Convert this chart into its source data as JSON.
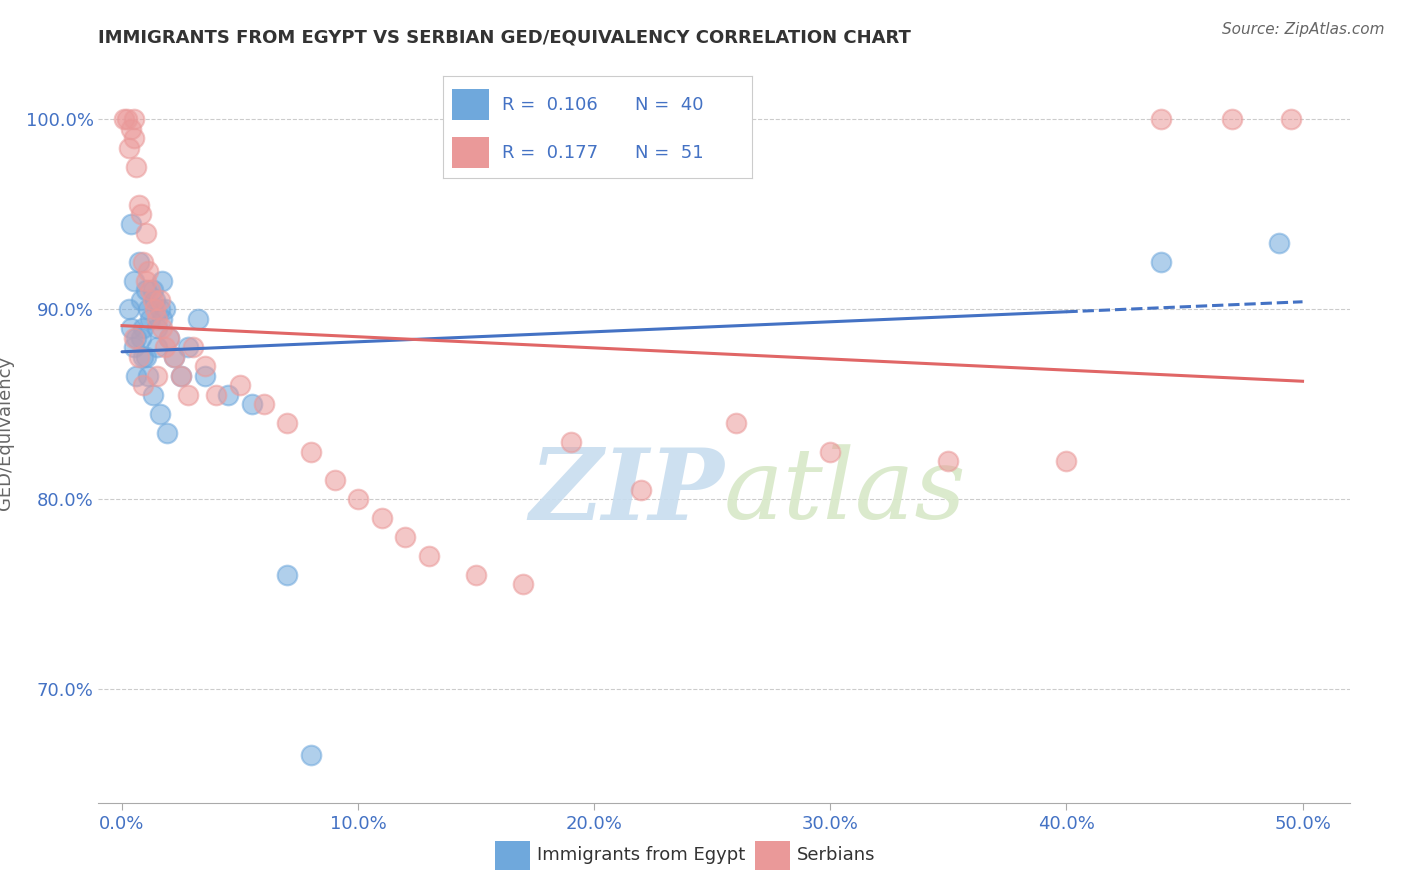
{
  "title": "IMMIGRANTS FROM EGYPT VS SERBIAN GED/EQUIVALENCY CORRELATION CHART",
  "source": "Source: ZipAtlas.com",
  "xlabel_label": "Immigrants from Egypt",
  "xlabel_label2": "Serbians",
  "ylabel": "GED/Equivalency",
  "xlim": [
    0.0,
    50.0
  ],
  "ylim": [
    64.0,
    103.0
  ],
  "xticks": [
    0.0,
    10.0,
    20.0,
    30.0,
    40.0,
    50.0
  ],
  "yticks": [
    70.0,
    80.0,
    90.0,
    100.0
  ],
  "ytick_labels": [
    "70.0%",
    "80.0%",
    "90.0%",
    "100.0%"
  ],
  "xtick_labels": [
    "0.0%",
    "10.0%",
    "20.0%",
    "30.0%",
    "40.0%",
    "50.0%"
  ],
  "legend_R1": "0.106",
  "legend_N1": "40",
  "legend_R2": "0.177",
  "legend_N2": "51",
  "blue_color": "#6FA8DC",
  "pink_color": "#EA9999",
  "blue_line_color": "#4472C4",
  "pink_line_color": "#E06666",
  "watermark_zip": "ZIP",
  "watermark_atlas": "atlas",
  "blue_x": [
    0.3,
    0.4,
    0.5,
    0.5,
    0.6,
    0.7,
    0.8,
    0.8,
    0.9,
    1.0,
    1.0,
    1.1,
    1.2,
    1.3,
    1.4,
    1.5,
    1.5,
    1.6,
    1.7,
    1.7,
    1.8,
    2.0,
    2.2,
    2.5,
    2.8,
    3.2,
    3.5,
    4.5,
    5.5,
    7.0,
    8.0,
    0.4,
    0.6,
    0.9,
    1.1,
    1.3,
    1.6,
    1.9,
    44.0,
    49.0
  ],
  "blue_y": [
    90.0,
    94.5,
    91.5,
    88.0,
    86.5,
    92.5,
    90.5,
    88.5,
    89.0,
    91.0,
    87.5,
    90.0,
    89.5,
    91.0,
    90.5,
    89.0,
    88.0,
    90.0,
    89.5,
    91.5,
    90.0,
    88.5,
    87.5,
    86.5,
    88.0,
    89.5,
    86.5,
    85.5,
    85.0,
    76.0,
    66.5,
    89.0,
    88.5,
    87.5,
    86.5,
    85.5,
    84.5,
    83.5,
    92.5,
    93.5
  ],
  "pink_x": [
    0.1,
    0.2,
    0.3,
    0.4,
    0.5,
    0.5,
    0.6,
    0.7,
    0.8,
    0.9,
    1.0,
    1.0,
    1.1,
    1.2,
    1.3,
    1.4,
    1.5,
    1.6,
    1.7,
    1.8,
    2.0,
    2.2,
    2.5,
    2.8,
    3.0,
    3.5,
    4.0,
    5.0,
    6.0,
    7.0,
    8.0,
    9.0,
    10.0,
    11.0,
    12.0,
    13.0,
    15.0,
    17.0,
    19.0,
    22.0,
    26.0,
    30.0,
    35.0,
    40.0,
    44.0,
    47.0,
    49.5,
    0.5,
    0.7,
    0.9,
    1.5
  ],
  "pink_y": [
    100.0,
    100.0,
    98.5,
    99.5,
    100.0,
    99.0,
    97.5,
    95.5,
    95.0,
    92.5,
    91.5,
    94.0,
    92.0,
    91.0,
    90.5,
    90.0,
    89.5,
    90.5,
    89.0,
    88.0,
    88.5,
    87.5,
    86.5,
    85.5,
    88.0,
    87.0,
    85.5,
    86.0,
    85.0,
    84.0,
    82.5,
    81.0,
    80.0,
    79.0,
    78.0,
    77.0,
    76.0,
    75.5,
    83.0,
    80.5,
    84.0,
    82.5,
    82.0,
    82.0,
    100.0,
    100.0,
    100.0,
    88.5,
    87.5,
    86.0,
    86.5
  ],
  "blue_trend_x0": 0.0,
  "blue_trend_x1_solid": 40.0,
  "blue_trend_x1_dash": 50.0
}
